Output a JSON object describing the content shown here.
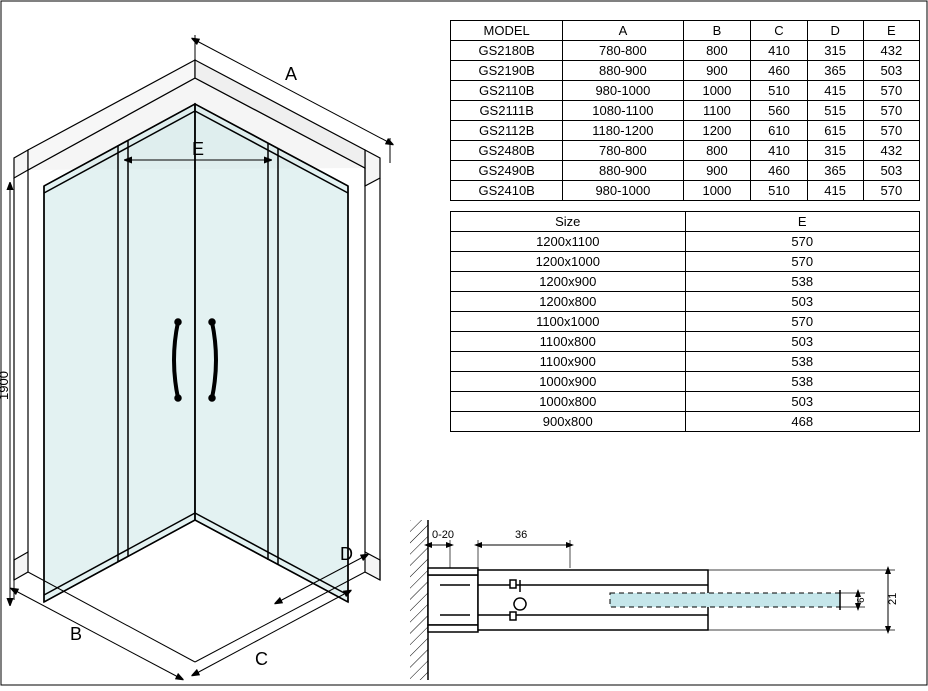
{
  "diagram": {
    "dim_A": "A",
    "dim_B": "B",
    "dim_C": "C",
    "dim_D": "D",
    "dim_E": "E",
    "height": "1900",
    "stroke": "#000000",
    "stroke_light": "#666666",
    "glass_fill": "#cce8e8",
    "glass_opacity": 0.55,
    "label_fontsize": 16,
    "small_fontsize": 11
  },
  "table1": {
    "headers": [
      "MODEL",
      "A",
      "B",
      "C",
      "D",
      "E"
    ],
    "rows": [
      [
        "GS2180B",
        "780-800",
        "800",
        "410",
        "315",
        "432"
      ],
      [
        "GS2190B",
        "880-900",
        "900",
        "460",
        "365",
        "503"
      ],
      [
        "GS2110B",
        "980-1000",
        "1000",
        "510",
        "415",
        "570"
      ],
      [
        "GS2111B",
        "1080-1100",
        "1100",
        "560",
        "515",
        "570"
      ],
      [
        "GS2112B",
        "1180-1200",
        "1200",
        "610",
        "615",
        "570"
      ],
      [
        "GS2480B",
        "780-800",
        "800",
        "410",
        "315",
        "432"
      ],
      [
        "GS2490B",
        "880-900",
        "900",
        "460",
        "365",
        "503"
      ],
      [
        "GS2410B",
        "980-1000",
        "1000",
        "510",
        "415",
        "570"
      ]
    ]
  },
  "table2": {
    "headers": [
      "Size",
      "E"
    ],
    "rows": [
      [
        "1200x1100",
        "570"
      ],
      [
        "1200x1000",
        "570"
      ],
      [
        "1200x900",
        "538"
      ],
      [
        "1200x800",
        "503"
      ],
      [
        "1100x1000",
        "570"
      ],
      [
        "1100x800",
        "503"
      ],
      [
        "1100x900",
        "538"
      ],
      [
        "1000x900",
        "538"
      ],
      [
        "1000x800",
        "503"
      ],
      [
        "900x800",
        "468"
      ]
    ]
  },
  "detail": {
    "dim_gap": "0-20",
    "dim_36": "36",
    "dim_21": "21",
    "dim_6": "6",
    "stroke": "#000000",
    "profile_fill": "#ffffff",
    "glass_fill": "#c5e6ea",
    "hatch_angle": 45
  }
}
